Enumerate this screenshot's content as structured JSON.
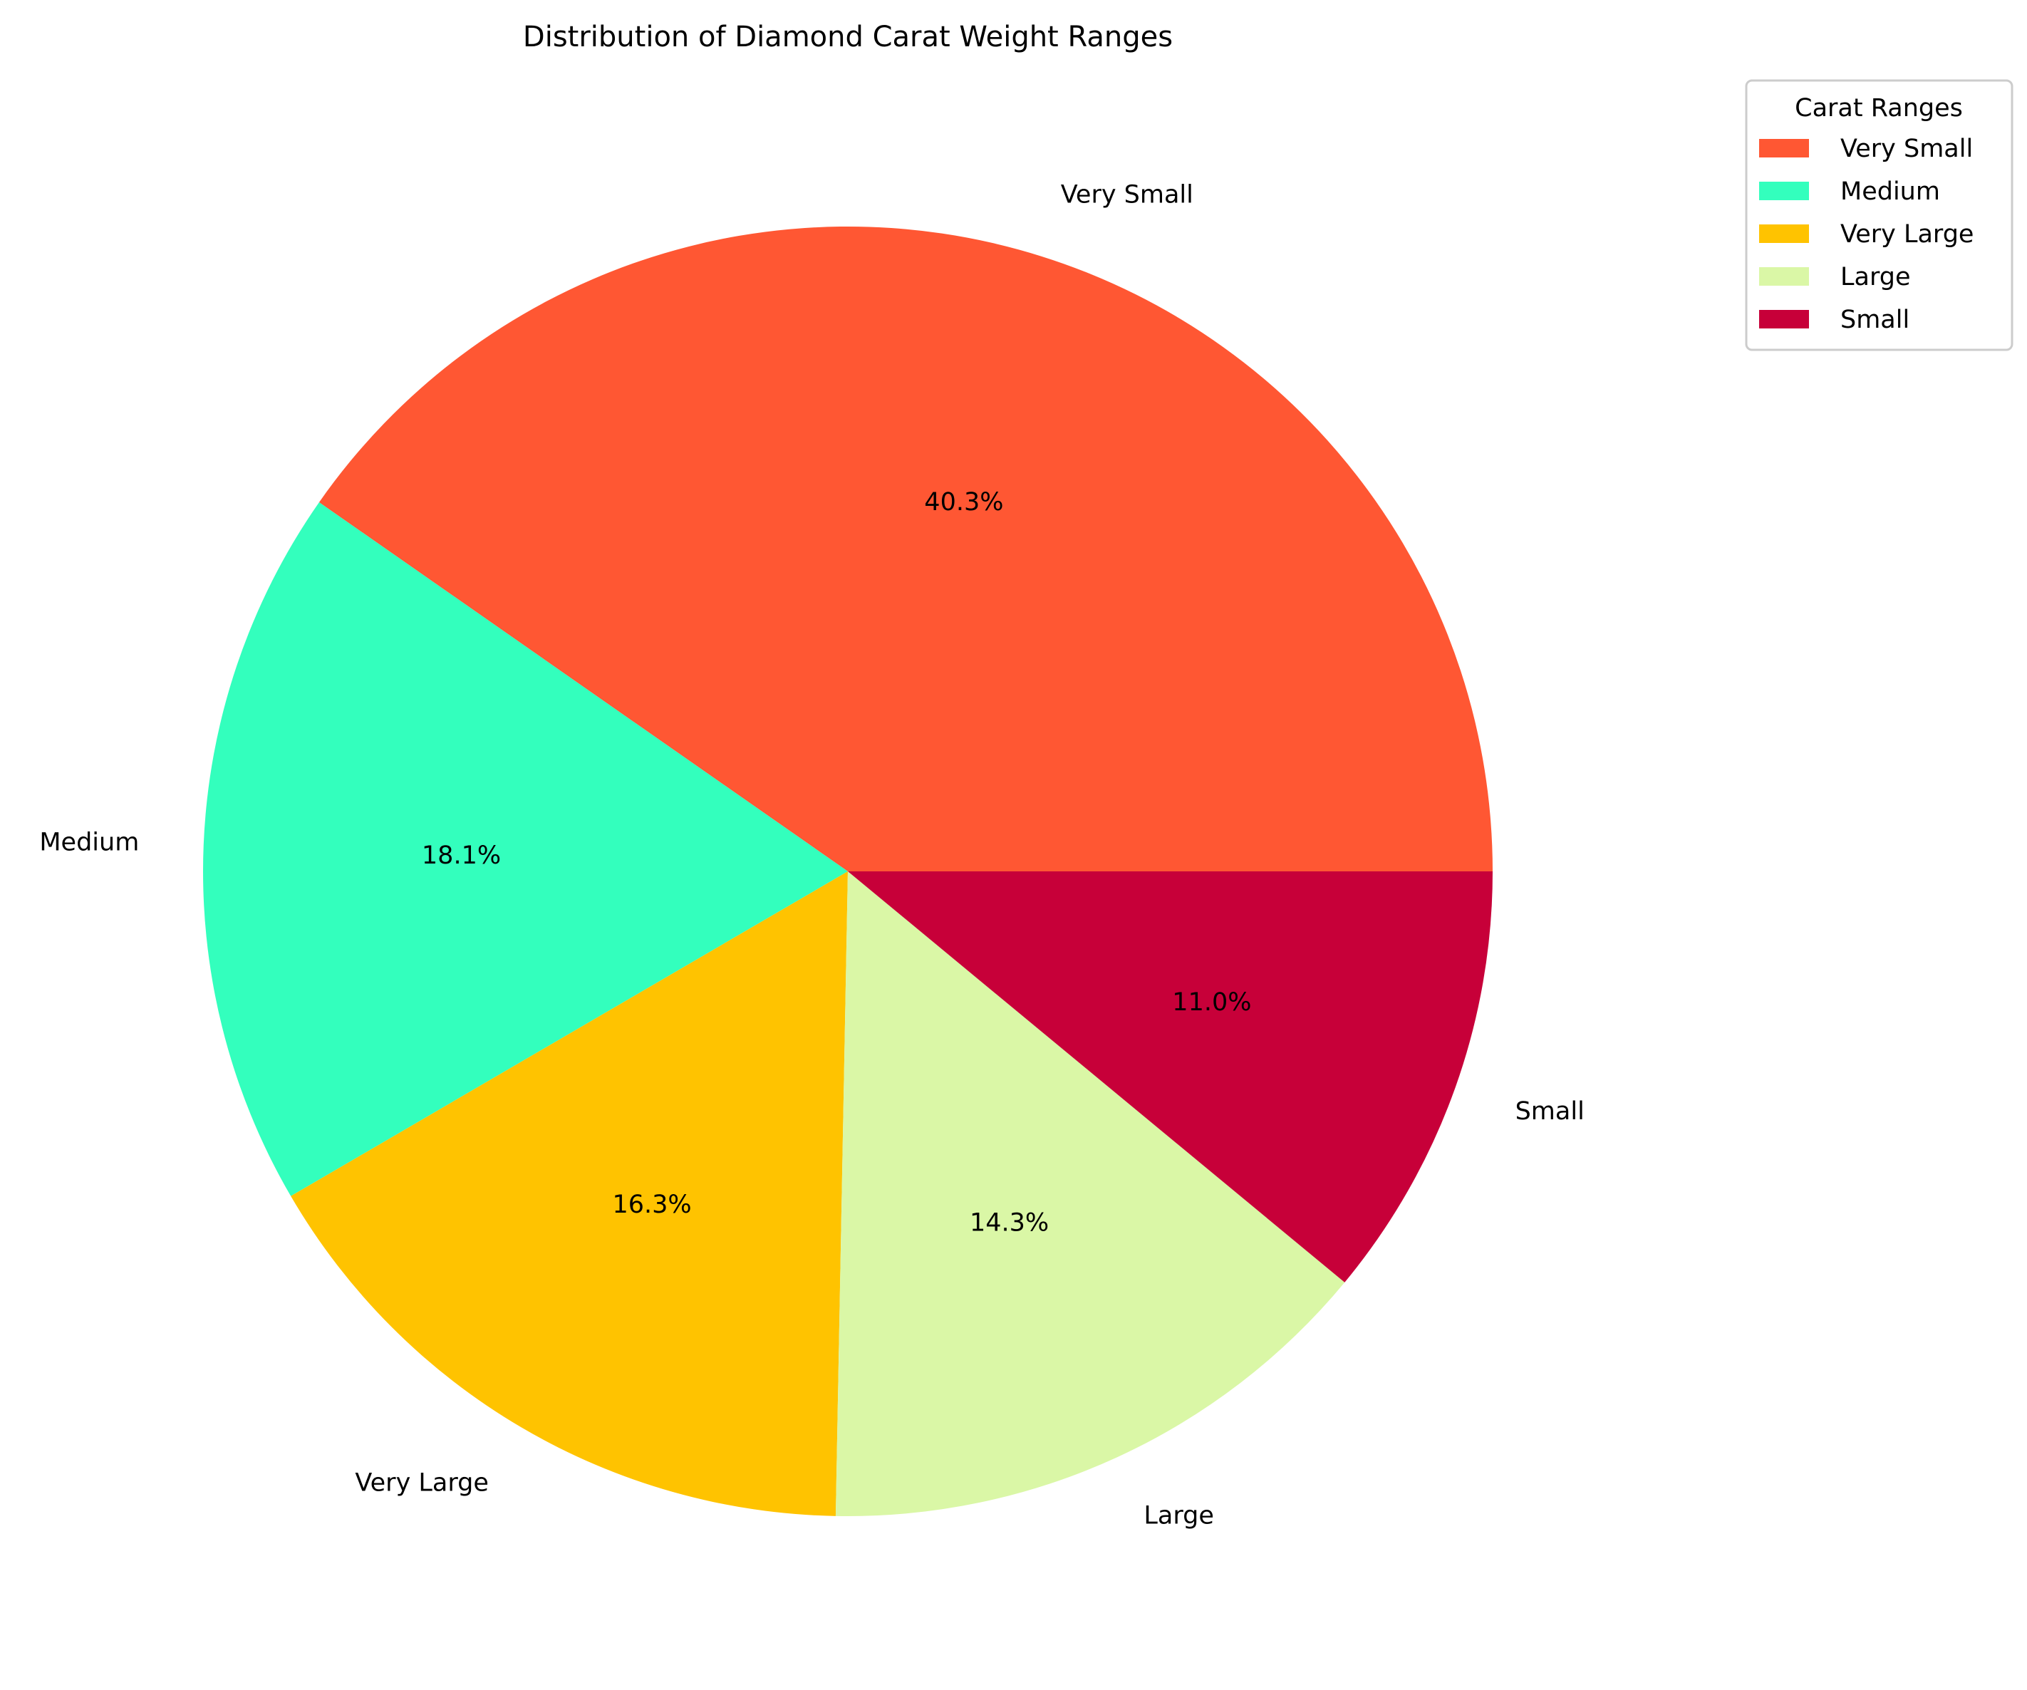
{
  "chart_data": {
    "type": "pie",
    "title": "Distribution of Diamond Carat Weight Ranges",
    "categories": [
      "Very Small",
      "Medium",
      "Very Large",
      "Large",
      "Small"
    ],
    "values": [
      40.3,
      18.1,
      16.3,
      14.3,
      11.0
    ],
    "value_labels": [
      "40.3%",
      "18.1%",
      "16.3%",
      "14.3%",
      "11.0%"
    ],
    "colors": [
      "#FF5733",
      "#33FFBD",
      "#FFC300",
      "#DAF7A6",
      "#C70039"
    ],
    "start_angle_deg": 0,
    "direction": "counterclockwise",
    "legend": {
      "title": "Carat Ranges",
      "placement": "top-right outside",
      "entries": [
        "Very Small",
        "Medium",
        "Very Large",
        "Large",
        "Small"
      ]
    }
  }
}
